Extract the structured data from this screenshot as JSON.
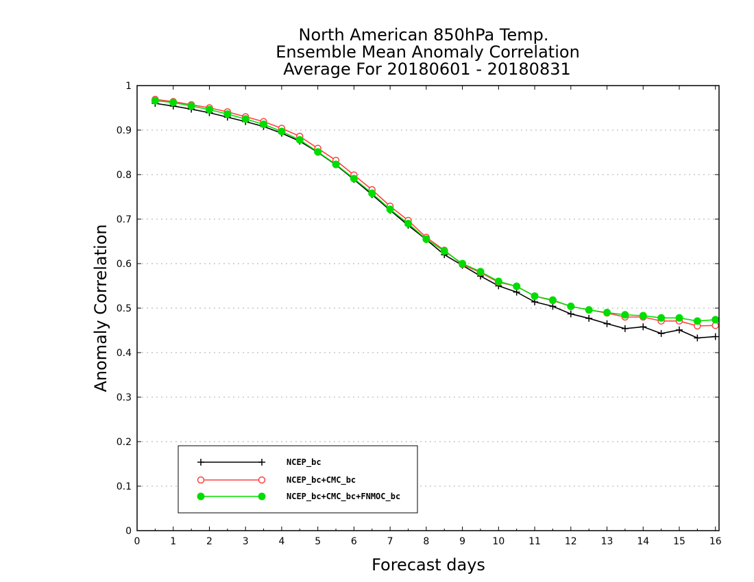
{
  "chart_data": {
    "type": "line",
    "title_lines": [
      "North American 850hPa Temp.",
      "Ensemble Mean Anomaly Correlation",
      "Average For 20180601 - 20180831"
    ],
    "xlabel": "Forecast days",
    "ylabel": "Anomaly Correlation",
    "xlim": [
      0,
      16.1
    ],
    "ylim": [
      0,
      1
    ],
    "xticks": [
      0,
      1,
      2,
      3,
      4,
      5,
      6,
      7,
      8,
      9,
      10,
      11,
      12,
      13,
      14,
      15,
      16
    ],
    "yticks": [
      0,
      0.1,
      0.2,
      0.3,
      0.4,
      0.5,
      0.6,
      0.7,
      0.8,
      0.9,
      1
    ],
    "ytick_labels": [
      "0",
      "0.1",
      "0.2",
      "0.3",
      "0.4",
      "0.5",
      "0.6",
      "0.7",
      "0.8",
      "0.9",
      "1"
    ],
    "grid": true,
    "legend_position": "bottom-left",
    "x": [
      0.5,
      1,
      1.5,
      2,
      2.5,
      3,
      3.5,
      4,
      4.5,
      5,
      5.5,
      6,
      6.5,
      7,
      7.5,
      8,
      8.5,
      9,
      9.5,
      10,
      10.5,
      11,
      11.5,
      12,
      12.5,
      13,
      13.5,
      14,
      14.5,
      15,
      15.5,
      16
    ],
    "series": [
      {
        "name": "NCEP_bc",
        "color": "#000000",
        "marker": "plus",
        "values": [
          0.96,
          0.954,
          0.947,
          0.939,
          0.929,
          0.919,
          0.908,
          0.893,
          0.875,
          0.85,
          0.822,
          0.789,
          0.755,
          0.72,
          0.686,
          0.654,
          0.62,
          0.596,
          0.572,
          0.55,
          0.536,
          0.514,
          0.504,
          0.487,
          0.477,
          0.465,
          0.454,
          0.458,
          0.443,
          0.451,
          0.433,
          0.436
        ]
      },
      {
        "name": "NCEP_bc+CMC_bc",
        "color": "#ff4040",
        "marker": "open-circle",
        "values": [
          0.969,
          0.964,
          0.957,
          0.95,
          0.941,
          0.93,
          0.919,
          0.904,
          0.886,
          0.859,
          0.832,
          0.799,
          0.766,
          0.729,
          0.697,
          0.659,
          0.63,
          0.598,
          0.58,
          0.558,
          0.549,
          0.527,
          0.517,
          0.504,
          0.496,
          0.489,
          0.48,
          0.48,
          0.471,
          0.471,
          0.46,
          0.461
        ]
      },
      {
        "name": "NCEP_bc+CMC_bc+FNMOC_bc",
        "color": "#00dd00",
        "marker": "filled-circle",
        "values": [
          0.966,
          0.962,
          0.954,
          0.946,
          0.936,
          0.925,
          0.913,
          0.897,
          0.878,
          0.851,
          0.823,
          0.791,
          0.758,
          0.722,
          0.69,
          0.655,
          0.628,
          0.6,
          0.582,
          0.56,
          0.549,
          0.527,
          0.518,
          0.504,
          0.496,
          0.49,
          0.485,
          0.483,
          0.478,
          0.478,
          0.471,
          0.474
        ]
      }
    ]
  }
}
